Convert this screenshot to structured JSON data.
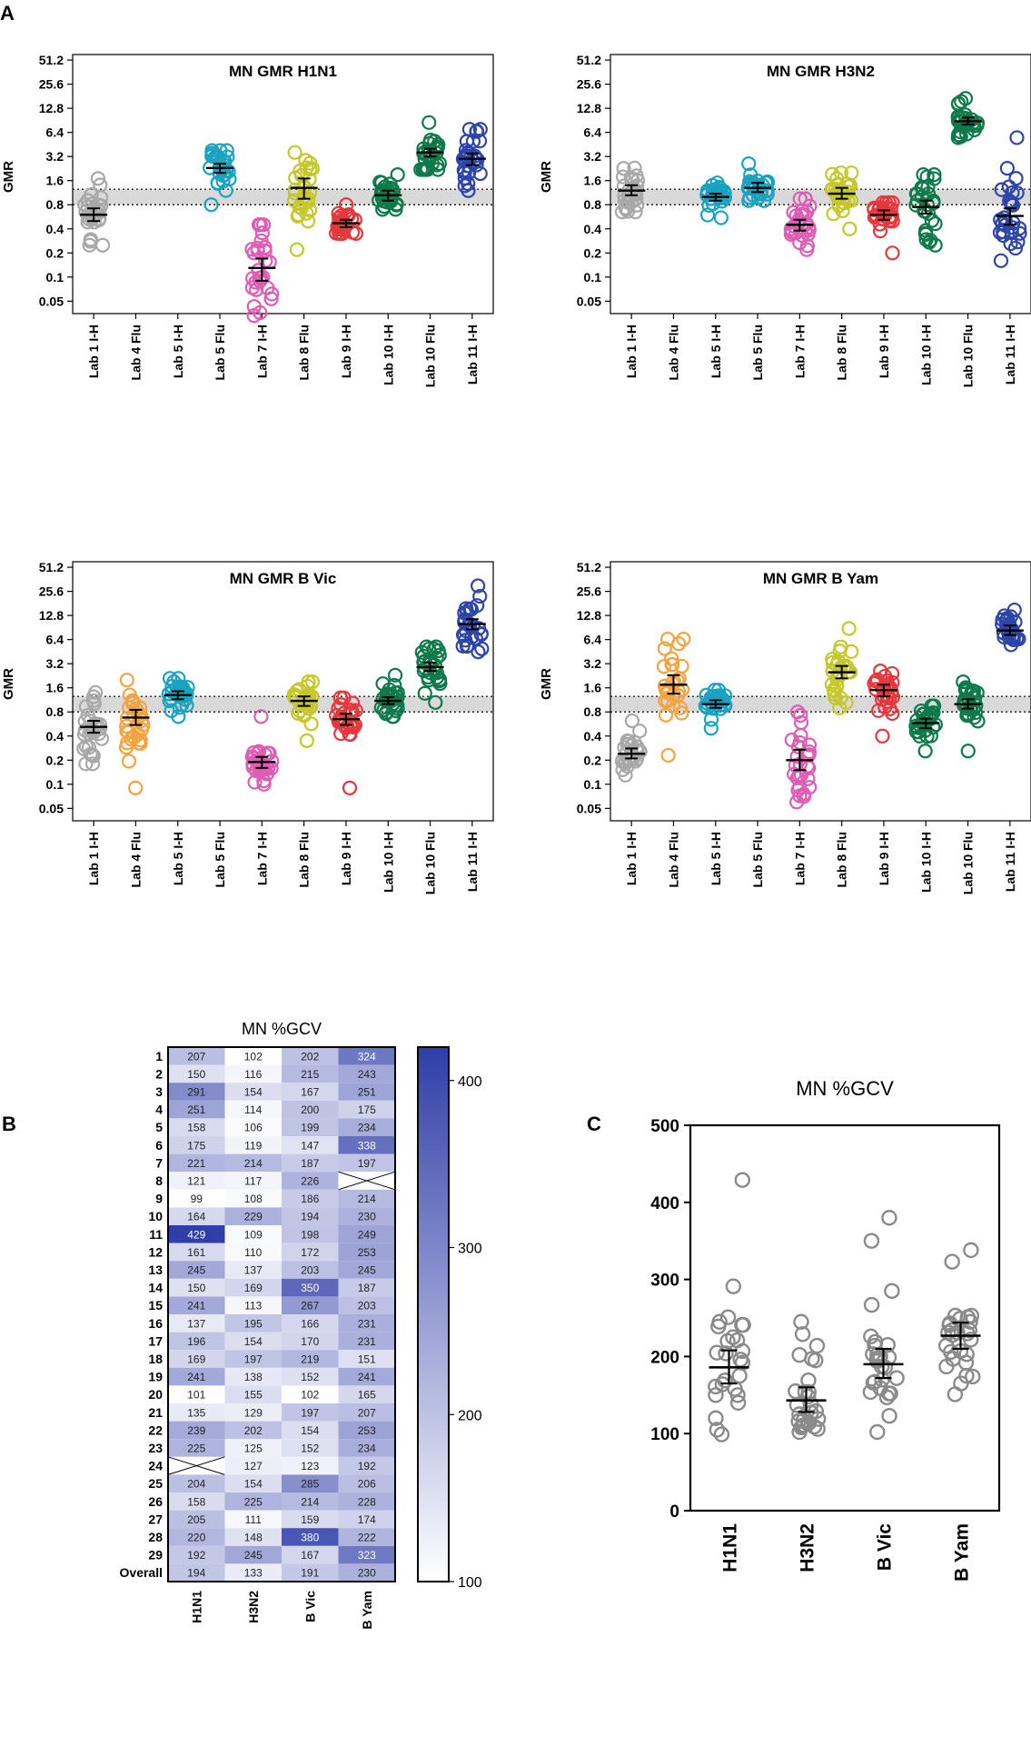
{
  "panel_labels": [
    "A",
    "B",
    "C"
  ],
  "colors": {
    "Lab 1 I-H": "#a8a8a8",
    "Lab 4 Flu": "#f4a340",
    "Lab 5 I-H": "#1aa3c0",
    "Lab 5 Flu": "#1aa3c0",
    "Lab 7 I-H": "#de5cb4",
    "Lab 8 Flu": "#c5c72a",
    "Lab 9 I-H": "#e8363d",
    "Lab 10 I-H": "#0e7a4a",
    "Lab 10 Flu": "#0e7a4a",
    "Lab 11 I-H": "#2d45a8",
    "band": "#d9d9d9",
    "heat_low": "#ffffff",
    "heat_high": "#2f3ea8",
    "panel_c_points": "#8a8a8a"
  },
  "chart_data": [
    {
      "type": "scatter",
      "id": "gmr_h1n1",
      "title": "MN GMR H1N1",
      "ylabel": "GMR",
      "yscale": "log2",
      "ylim": [
        0.035,
        60
      ],
      "yticks": [
        "0.05",
        "0.1",
        "0.2",
        "0.4",
        "0.8",
        "1.6",
        "3.2",
        "6.4",
        "12.8",
        "25.6",
        "51.2"
      ],
      "categories": [
        "Lab 1 I-H",
        "Lab 4 Flu",
        "Lab 5 I-H",
        "Lab 5 Flu",
        "Lab 7 I-H",
        "Lab 8 Flu",
        "Lab 9 I-H",
        "Lab 10 I-H",
        "Lab 10 Flu",
        "Lab 11 I-H"
      ],
      "reference_band": [
        0.8,
        1.25
      ],
      "series": [
        {
          "lab": "Lab 1 I-H",
          "gm": 0.6,
          "ci": [
            0.5,
            0.72
          ],
          "min": 0.25,
          "max": 1.7
        },
        {
          "lab": "Lab 5 Flu",
          "gm": 2.3,
          "ci": [
            2.0,
            2.6
          ],
          "min": 0.8,
          "max": 3.8
        },
        {
          "lab": "Lab 7 I-H",
          "gm": 0.13,
          "ci": [
            0.09,
            0.17
          ],
          "min": 0.033,
          "max": 0.45
        },
        {
          "lab": "Lab 8 Flu",
          "gm": 1.3,
          "ci": [
            0.95,
            1.7
          ],
          "min": 0.22,
          "max": 3.6
        },
        {
          "lab": "Lab 9 I-H",
          "gm": 0.47,
          "ci": [
            0.42,
            0.52
          ],
          "min": 0.35,
          "max": 0.8
        },
        {
          "lab": "Lab 10 I-H",
          "gm": 1.05,
          "ci": [
            0.9,
            1.2
          ],
          "min": 0.7,
          "max": 1.9
        },
        {
          "lab": "Lab 10 Flu",
          "gm": 3.6,
          "ci": [
            3.2,
            4.0
          ],
          "min": 2.2,
          "max": 8.5
        },
        {
          "lab": "Lab 11 I-H",
          "gm": 3.0,
          "ci": [
            2.5,
            3.5
          ],
          "min": 1.2,
          "max": 7.0
        }
      ]
    },
    {
      "type": "scatter",
      "id": "gmr_h3n2",
      "title": "MN GMR H3N2",
      "ylabel": "GMR",
      "yscale": "log2",
      "ylim": [
        0.035,
        60
      ],
      "yticks": [
        "0.05",
        "0.1",
        "0.2",
        "0.4",
        "0.8",
        "1.6",
        "3.2",
        "6.4",
        "12.8",
        "25.6",
        "51.2"
      ],
      "categories": [
        "Lab 1 I-H",
        "Lab 4 Flu",
        "Lab 5 I-H",
        "Lab 5 Flu",
        "Lab 7 I-H",
        "Lab 8 Flu",
        "Lab 9 I-H",
        "Lab 10 I-H",
        "Lab 10 Flu",
        "Lab 11 I-H"
      ],
      "reference_band": [
        0.8,
        1.25
      ],
      "series": [
        {
          "lab": "Lab 1 I-H",
          "gm": 1.2,
          "ci": [
            1.05,
            1.4
          ],
          "min": 0.65,
          "max": 2.3
        },
        {
          "lab": "Lab 5 I-H",
          "gm": 1.0,
          "ci": [
            0.9,
            1.1
          ],
          "min": 0.55,
          "max": 1.5
        },
        {
          "lab": "Lab 5 Flu",
          "gm": 1.3,
          "ci": [
            1.15,
            1.5
          ],
          "min": 0.9,
          "max": 2.6
        },
        {
          "lab": "Lab 7 I-H",
          "gm": 0.45,
          "ci": [
            0.38,
            0.52
          ],
          "min": 0.22,
          "max": 0.95
        },
        {
          "lab": "Lab 8 Flu",
          "gm": 1.1,
          "ci": [
            0.95,
            1.3
          ],
          "min": 0.4,
          "max": 2.0
        },
        {
          "lab": "Lab 9 I-H",
          "gm": 0.6,
          "ci": [
            0.52,
            0.68
          ],
          "min": 0.2,
          "max": 0.85
        },
        {
          "lab": "Lab 10 I-H",
          "gm": 0.75,
          "ci": [
            0.62,
            0.9
          ],
          "min": 0.25,
          "max": 1.9
        },
        {
          "lab": "Lab 10 Flu",
          "gm": 8.8,
          "ci": [
            8.0,
            9.8
          ],
          "min": 5.5,
          "max": 17
        },
        {
          "lab": "Lab 11 I-H",
          "gm": 0.58,
          "ci": [
            0.45,
            0.72
          ],
          "min": 0.16,
          "max": 5.5
        }
      ]
    },
    {
      "type": "scatter",
      "id": "gmr_bvic",
      "title": "MN GMR B Vic",
      "ylabel": "GMR",
      "yscale": "log2",
      "ylim": [
        0.035,
        60
      ],
      "yticks": [
        "0.05",
        "0.1",
        "0.2",
        "0.4",
        "0.8",
        "1.6",
        "3.2",
        "6.4",
        "12.8",
        "25.6",
        "51.2"
      ],
      "categories": [
        "Lab 1 I-H",
        "Lab 4 Flu",
        "Lab 5 I-H",
        "Lab 5 Flu",
        "Lab 7 I-H",
        "Lab 8 Flu",
        "Lab 9 I-H",
        "Lab 10 I-H",
        "Lab 10 Flu",
        "Lab 11 I-H"
      ],
      "reference_band": [
        0.8,
        1.25
      ],
      "series": [
        {
          "lab": "Lab 1 I-H",
          "gm": 0.52,
          "ci": [
            0.44,
            0.62
          ],
          "min": 0.18,
          "max": 1.4
        },
        {
          "lab": "Lab 4 Flu",
          "gm": 0.68,
          "ci": [
            0.55,
            0.85
          ],
          "min": 0.09,
          "max": 2.0
        },
        {
          "lab": "Lab 5 I-H",
          "gm": 1.3,
          "ci": [
            1.15,
            1.45
          ],
          "min": 0.7,
          "max": 2.1
        },
        {
          "lab": "Lab 7 I-H",
          "gm": 0.19,
          "ci": [
            0.16,
            0.22
          ],
          "min": 0.1,
          "max": 0.7
        },
        {
          "lab": "Lab 8 Flu",
          "gm": 1.1,
          "ci": [
            0.95,
            1.25
          ],
          "min": 0.35,
          "max": 1.9
        },
        {
          "lab": "Lab 9 I-H",
          "gm": 0.65,
          "ci": [
            0.55,
            0.76
          ],
          "min": 0.09,
          "max": 1.2
        },
        {
          "lab": "Lab 10 I-H",
          "gm": 1.1,
          "ci": [
            1.0,
            1.22
          ],
          "min": 0.7,
          "max": 2.3
        },
        {
          "lab": "Lab 10 Flu",
          "gm": 2.9,
          "ci": [
            2.6,
            3.3
          ],
          "min": 1.05,
          "max": 5.2
        },
        {
          "lab": "Lab 11 I-H",
          "gm": 10,
          "ci": [
            8.6,
            11.5
          ],
          "min": 4.5,
          "max": 30
        }
      ]
    },
    {
      "type": "scatter",
      "id": "gmr_byam",
      "title": "MN GMR B Yam",
      "ylabel": "GMR",
      "yscale": "log2",
      "ylim": [
        0.035,
        60
      ],
      "yticks": [
        "0.05",
        "0.1",
        "0.2",
        "0.4",
        "0.8",
        "1.6",
        "3.2",
        "6.4",
        "12.8",
        "25.6",
        "51.2"
      ],
      "categories": [
        "Lab 1 I-H",
        "Lab 4 Flu",
        "Lab 5 I-H",
        "Lab 5 Flu",
        "Lab 7 I-H",
        "Lab 8 Flu",
        "Lab 9 I-H",
        "Lab 10 I-H",
        "Lab 10 Flu",
        "Lab 11 I-H"
      ],
      "reference_band": [
        0.8,
        1.25
      ],
      "series": [
        {
          "lab": "Lab 1 I-H",
          "gm": 0.24,
          "ci": [
            0.21,
            0.28
          ],
          "min": 0.13,
          "max": 0.62
        },
        {
          "lab": "Lab 4 Flu",
          "gm": 1.75,
          "ci": [
            1.35,
            2.3
          ],
          "min": 0.23,
          "max": 6.5
        },
        {
          "lab": "Lab 5 I-H",
          "gm": 1.0,
          "ci": [
            0.9,
            1.12
          ],
          "min": 0.5,
          "max": 1.5
        },
        {
          "lab": "Lab 7 I-H",
          "gm": 0.2,
          "ci": [
            0.15,
            0.27
          ],
          "min": 0.06,
          "max": 0.8
        },
        {
          "lab": "Lab 8 Flu",
          "gm": 2.5,
          "ci": [
            2.1,
            3.0
          ],
          "min": 0.9,
          "max": 8.8
        },
        {
          "lab": "Lab 9 I-H",
          "gm": 1.5,
          "ci": [
            1.25,
            1.75
          ],
          "min": 0.4,
          "max": 2.6
        },
        {
          "lab": "Lab 10 I-H",
          "gm": 0.58,
          "ci": [
            0.5,
            0.66
          ],
          "min": 0.26,
          "max": 0.95
        },
        {
          "lab": "Lab 10 Flu",
          "gm": 1.0,
          "ci": [
            0.88,
            1.15
          ],
          "min": 0.26,
          "max": 1.9
        },
        {
          "lab": "Lab 11 I-H",
          "gm": 8.3,
          "ci": [
            7.3,
            9.6
          ],
          "min": 5.5,
          "max": 15
        }
      ]
    },
    {
      "type": "heatmap",
      "id": "gcv_heatmap",
      "title": "MN %GCV",
      "columns": [
        "H1N1",
        "H3N2",
        "B Vic",
        "B Yam"
      ],
      "rows": [
        "1",
        "2",
        "3",
        "4",
        "5",
        "6",
        "7",
        "8",
        "9",
        "10",
        "11",
        "12",
        "13",
        "14",
        "15",
        "16",
        "17",
        "18",
        "19",
        "20",
        "21",
        "22",
        "23",
        "24",
        "25",
        "26",
        "27",
        "28",
        "29",
        "Overall"
      ],
      "values": [
        [
          207,
          102,
          202,
          324
        ],
        [
          150,
          116,
          215,
          243
        ],
        [
          291,
          154,
          167,
          251
        ],
        [
          251,
          114,
          200,
          175
        ],
        [
          158,
          106,
          199,
          234
        ],
        [
          175,
          119,
          147,
          338
        ],
        [
          221,
          214,
          187,
          197
        ],
        [
          121,
          117,
          226,
          null
        ],
        [
          99,
          108,
          186,
          214
        ],
        [
          164,
          229,
          194,
          230
        ],
        [
          429,
          109,
          198,
          249
        ],
        [
          161,
          110,
          172,
          253
        ],
        [
          245,
          137,
          203,
          245
        ],
        [
          150,
          169,
          350,
          187
        ],
        [
          241,
          113,
          267,
          203
        ],
        [
          137,
          195,
          166,
          231
        ],
        [
          196,
          154,
          170,
          231
        ],
        [
          169,
          197,
          219,
          151
        ],
        [
          241,
          138,
          152,
          241
        ],
        [
          101,
          155,
          102,
          165
        ],
        [
          135,
          129,
          197,
          207
        ],
        [
          239,
          202,
          154,
          253
        ],
        [
          225,
          125,
          152,
          234
        ],
        [
          null,
          127,
          123,
          192
        ],
        [
          204,
          154,
          285,
          206
        ],
        [
          158,
          225,
          214,
          228
        ],
        [
          205,
          111,
          159,
          174
        ],
        [
          220,
          148,
          380,
          222
        ],
        [
          192,
          245,
          167,
          323
        ],
        [
          194,
          133,
          191,
          230
        ]
      ],
      "colorbar": {
        "min": 100,
        "max": 420,
        "ticks": [
          "100",
          "200",
          "300",
          "400"
        ]
      }
    },
    {
      "type": "scatter",
      "id": "gcv_scatter",
      "title": "MN %GCV",
      "categories": [
        "H1N1",
        "H3N2",
        "B Vic",
        "B Yam"
      ],
      "ylim": [
        0,
        500
      ],
      "yticks": [
        "0",
        "100",
        "200",
        "300",
        "400",
        "500"
      ],
      "summary": [
        {
          "name": "H1N1",
          "center": 186,
          "ci": [
            165,
            208
          ]
        },
        {
          "name": "H3N2",
          "center": 143,
          "ci": [
            128,
            160
          ]
        },
        {
          "name": "B Vic",
          "center": 190,
          "ci": [
            172,
            210
          ]
        },
        {
          "name": "B Yam",
          "center": 227,
          "ci": [
            210,
            244
          ]
        }
      ]
    }
  ]
}
